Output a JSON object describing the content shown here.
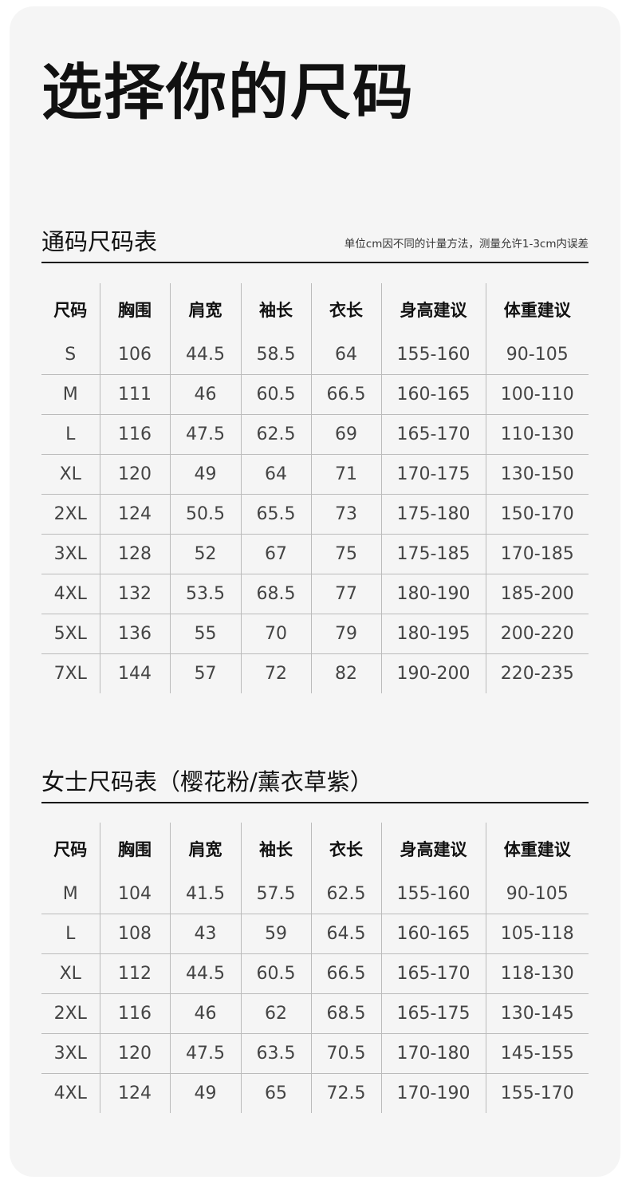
{
  "title": "选择你的尺码",
  "unisex": {
    "heading": "通码尺码表",
    "note": "单位cm因不同的计量方法，测量允许1-3cm内误差",
    "columns": [
      "尺码",
      "胸围",
      "肩宽",
      "袖长",
      "衣长",
      "身高建议",
      "体重建议"
    ],
    "rows": [
      [
        "S",
        "106",
        "44.5",
        "58.5",
        "64",
        "155-160",
        "90-105"
      ],
      [
        "M",
        "111",
        "46",
        "60.5",
        "66.5",
        "160-165",
        "100-110"
      ],
      [
        "L",
        "116",
        "47.5",
        "62.5",
        "69",
        "165-170",
        "110-130"
      ],
      [
        "XL",
        "120",
        "49",
        "64",
        "71",
        "170-175",
        "130-150"
      ],
      [
        "2XL",
        "124",
        "50.5",
        "65.5",
        "73",
        "175-180",
        "150-170"
      ],
      [
        "3XL",
        "128",
        "52",
        "67",
        "75",
        "175-185",
        "170-185"
      ],
      [
        "4XL",
        "132",
        "53.5",
        "68.5",
        "77",
        "180-190",
        "185-200"
      ],
      [
        "5XL",
        "136",
        "55",
        "70",
        "79",
        "180-195",
        "200-220"
      ],
      [
        "7XL",
        "144",
        "57",
        "72",
        "82",
        "190-200",
        "220-235"
      ]
    ]
  },
  "women": {
    "heading": "女士尺码表（樱花粉/薰衣草紫）",
    "columns": [
      "尺码",
      "胸围",
      "肩宽",
      "袖长",
      "衣长",
      "身高建议",
      "体重建议"
    ],
    "rows": [
      [
        "M",
        "104",
        "41.5",
        "57.5",
        "62.5",
        "155-160",
        "90-105"
      ],
      [
        "L",
        "108",
        "43",
        "59",
        "64.5",
        "160-165",
        "105-118"
      ],
      [
        "XL",
        "112",
        "44.5",
        "60.5",
        "66.5",
        "165-170",
        "118-130"
      ],
      [
        "2XL",
        "116",
        "46",
        "62",
        "68.5",
        "165-175",
        "130-145"
      ],
      [
        "3XL",
        "120",
        "47.5",
        "63.5",
        "70.5",
        "170-180",
        "145-155"
      ],
      [
        "4XL",
        "124",
        "49",
        "65",
        "72.5",
        "170-190",
        "155-170"
      ]
    ]
  }
}
